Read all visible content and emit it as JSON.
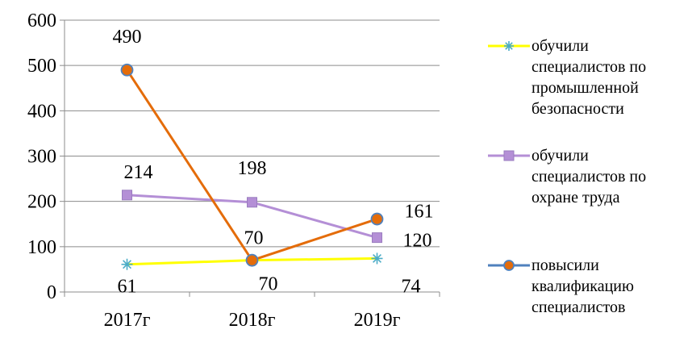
{
  "chart_data": {
    "type": "line",
    "categories": [
      "2017г",
      "2018г",
      "2019г"
    ],
    "ylim": [
      0,
      600
    ],
    "yticks": [
      "0",
      "100",
      "200",
      "300",
      "400",
      "500",
      "600"
    ],
    "grid": true,
    "legend_position": "right",
    "series": [
      {
        "name": "обучили\nспециалистов по\nпромышленной\nбезопасности",
        "values": [
          61,
          70,
          74
        ],
        "labels": [
          "61",
          "70",
          "74"
        ],
        "color": "#FFFF00",
        "marker": "asterisk",
        "marker_color": "#4BACC6"
      },
      {
        "name": "обучили\nспециалистов по\nохране труда",
        "values": [
          214,
          198,
          120
        ],
        "labels": [
          "214",
          "198",
          "120"
        ],
        "color": "#B48FD6",
        "marker": "square",
        "marker_color": "#B48FD6"
      },
      {
        "name": "повысили\nквалификацию\nспециалистов",
        "values": [
          490,
          70,
          161
        ],
        "labels": [
          "490",
          "70",
          "161"
        ],
        "color": "#E46C0A",
        "marker": "circle",
        "marker_color": "#E46C0A",
        "marker_edge": "#4F81BD",
        "legend_line_color": "#4F81BD"
      }
    ]
  }
}
